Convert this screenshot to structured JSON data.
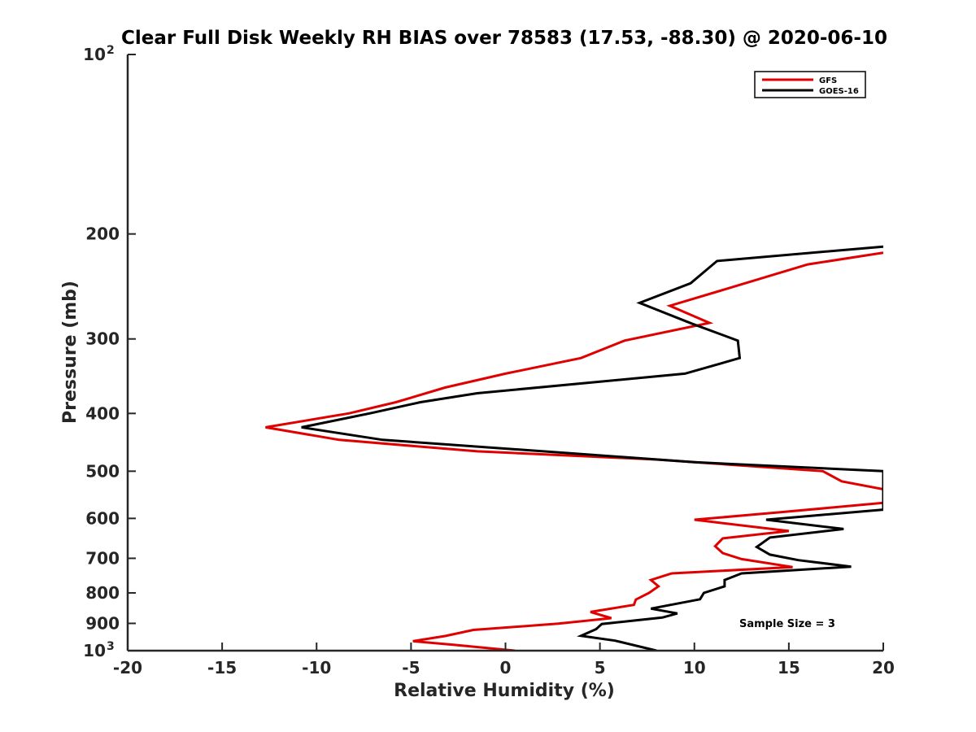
{
  "chart_data": {
    "type": "line",
    "title": "Clear Full Disk Weekly RH BIAS over 78583 (17.53, -88.30) @ 2020-06-10",
    "xlabel": "Relative Humidity (%)",
    "ylabel": "Pressure (mb)",
    "xlim": [
      -20,
      20
    ],
    "ylim": [
      100,
      1000
    ],
    "y_scale": "log",
    "y_reversed": true,
    "grid": false,
    "legend_position": "top-right",
    "x_ticks": [
      "-20",
      "-15",
      "-10",
      "-5",
      "0",
      "5",
      "10",
      "15",
      "20"
    ],
    "y_ticks": [
      {
        "value": 100,
        "label": "10",
        "sup": "2"
      },
      {
        "value": 200,
        "label": "200",
        "sup": ""
      },
      {
        "value": 300,
        "label": "300",
        "sup": ""
      },
      {
        "value": 400,
        "label": "400",
        "sup": ""
      },
      {
        "value": 500,
        "label": "500",
        "sup": ""
      },
      {
        "value": 600,
        "label": "600",
        "sup": ""
      },
      {
        "value": 700,
        "label": "700",
        "sup": ""
      },
      {
        "value": 800,
        "label": "800",
        "sup": ""
      },
      {
        "value": 900,
        "label": "900",
        "sup": ""
      },
      {
        "value": 1000,
        "label": "10",
        "sup": "3"
      }
    ],
    "annotation": "Sample Size = 3",
    "series": [
      {
        "name": "GFS",
        "color": "#e00000",
        "points": [
          [
            20.0,
            215
          ],
          [
            16.0,
            225
          ],
          [
            12.5,
            243
          ],
          [
            8.7,
            264
          ],
          [
            10.8,
            282
          ],
          [
            6.3,
            302
          ],
          [
            4.0,
            323
          ],
          [
            0.0,
            343
          ],
          [
            -3.2,
            362
          ],
          [
            -5.8,
            383
          ],
          [
            -8.3,
            400
          ],
          [
            -12.7,
            422
          ],
          [
            -8.8,
            443
          ],
          [
            -1.5,
            463
          ],
          [
            8.0,
            478
          ],
          [
            16.8,
            500
          ],
          [
            17.8,
            520
          ],
          [
            20.0,
            536
          ],
          [
            20.0,
            565
          ],
          [
            14.5,
            586
          ],
          [
            10.0,
            603
          ],
          [
            15.0,
            630
          ],
          [
            11.5,
            648
          ],
          [
            11.1,
            668
          ],
          [
            11.5,
            686
          ],
          [
            12.5,
            702
          ],
          [
            15.2,
            724
          ],
          [
            8.8,
            742
          ],
          [
            7.7,
            761
          ],
          [
            8.1,
            780
          ],
          [
            7.6,
            800
          ],
          [
            6.9,
            821
          ],
          [
            6.8,
            838
          ],
          [
            4.5,
            861
          ],
          [
            5.6,
            882
          ],
          [
            2.8,
            901
          ],
          [
            -1.7,
            923
          ],
          [
            -3.2,
            945
          ],
          [
            -4.9,
            964
          ],
          [
            -2.7,
            978
          ],
          [
            0.5,
            1000
          ]
        ]
      },
      {
        "name": "GOES-16",
        "color": "#000000",
        "points": [
          [
            20.0,
            210
          ],
          [
            11.2,
            222
          ],
          [
            9.8,
            242
          ],
          [
            7.1,
            261
          ],
          [
            9.9,
            283
          ],
          [
            12.3,
            302
          ],
          [
            12.4,
            323
          ],
          [
            9.5,
            343
          ],
          [
            -1.5,
            370
          ],
          [
            -4.5,
            383
          ],
          [
            -7.2,
            400
          ],
          [
            -10.8,
            422
          ],
          [
            -6.5,
            443
          ],
          [
            2.0,
            463
          ],
          [
            10.0,
            483
          ],
          [
            20.0,
            500
          ],
          [
            20.0,
            580
          ],
          [
            13.8,
            603
          ],
          [
            17.9,
            625
          ],
          [
            14.0,
            646
          ],
          [
            13.3,
            670
          ],
          [
            14.0,
            690
          ],
          [
            15.5,
            705
          ],
          [
            18.3,
            723
          ],
          [
            12.5,
            742
          ],
          [
            11.6,
            761
          ],
          [
            11.6,
            780
          ],
          [
            10.5,
            800
          ],
          [
            10.3,
            820
          ],
          [
            7.7,
            850
          ],
          [
            9.1,
            866
          ],
          [
            8.3,
            880
          ],
          [
            5.1,
            902
          ],
          [
            4.8,
            920
          ],
          [
            4.0,
            944
          ],
          [
            5.8,
            962
          ],
          [
            8.0,
            1000
          ]
        ]
      }
    ]
  }
}
